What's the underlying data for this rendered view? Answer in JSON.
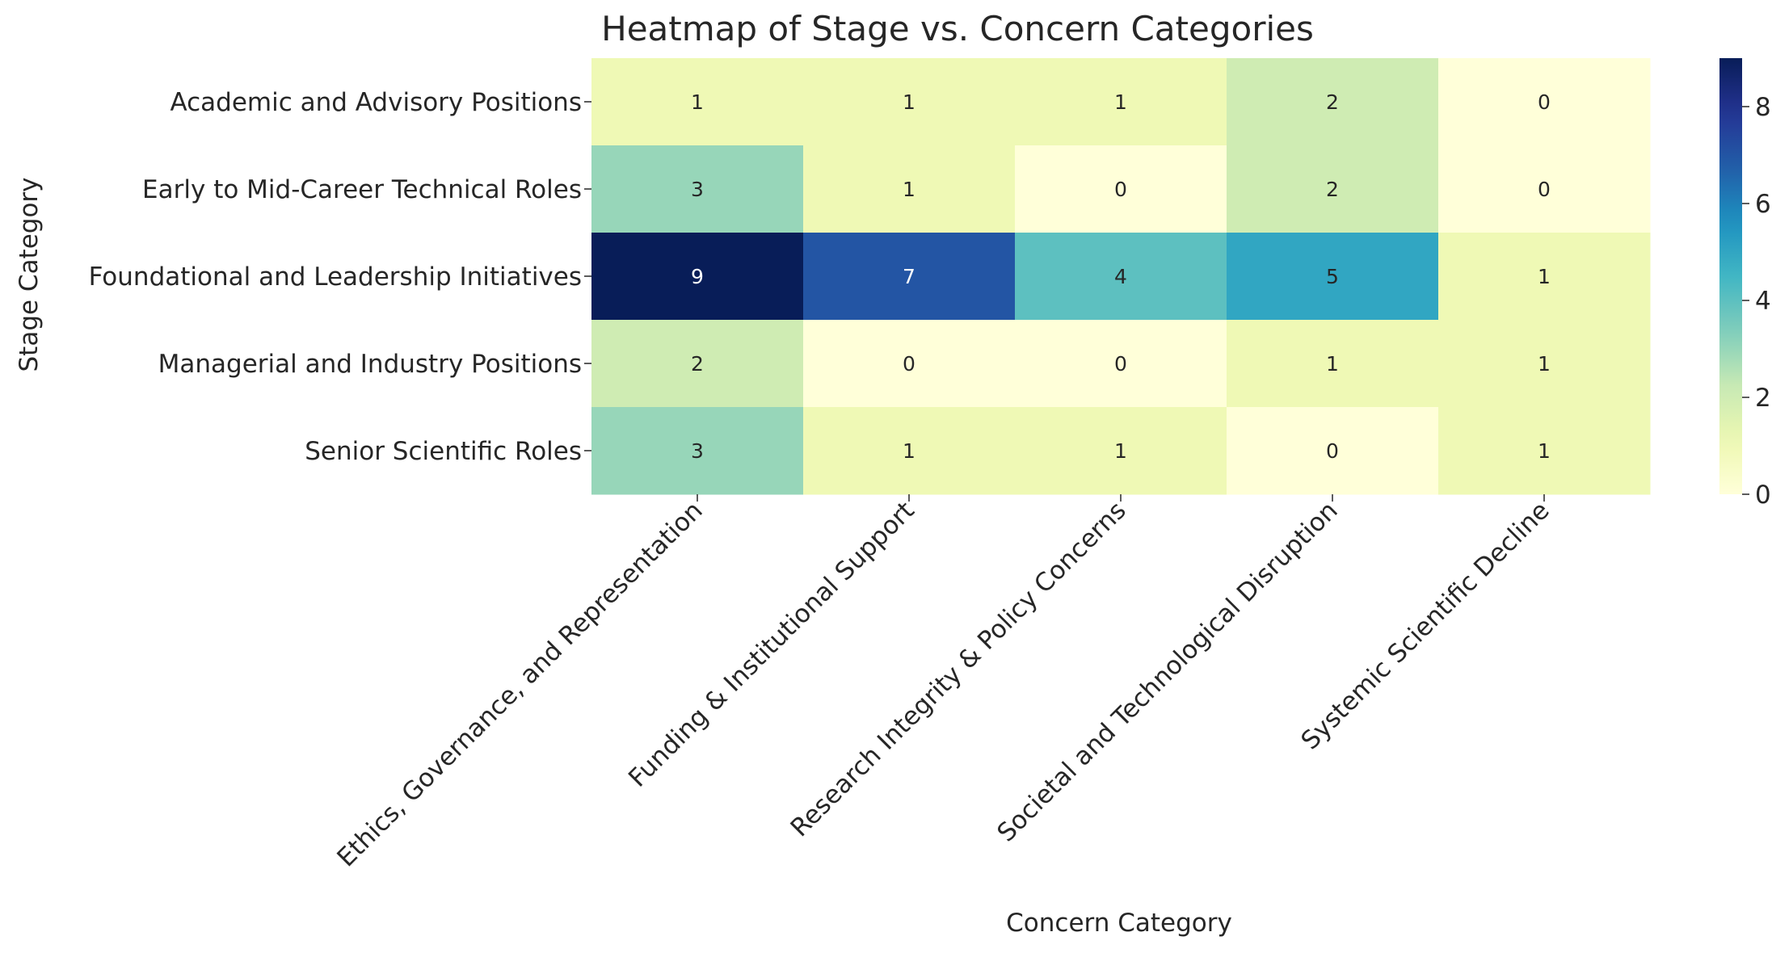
{
  "chart_data": {
    "type": "heatmap",
    "title": "Heatmap of Stage vs. Concern Categories",
    "xlabel": "Concern Category",
    "ylabel": "Stage Category",
    "x_categories": [
      "Ethics, Governance, and Representation",
      "Funding & Institutional Support",
      "Research Integrity & Policy Concerns",
      "Societal and Technological Disruption",
      "Systemic Scientific Decline"
    ],
    "y_categories": [
      "Academic and Advisory Positions",
      "Early to Mid-Career Technical Roles",
      "Foundational and Leadership Initiatives",
      "Managerial and Industry Positions",
      "Senior Scientific Roles"
    ],
    "values": [
      [
        1,
        1,
        1,
        2,
        0
      ],
      [
        3,
        1,
        0,
        2,
        0
      ],
      [
        9,
        7,
        4,
        5,
        1
      ],
      [
        2,
        0,
        0,
        1,
        1
      ],
      [
        3,
        1,
        1,
        0,
        1
      ]
    ],
    "colorbar": {
      "colormap": "YlGnBu",
      "range": [
        0,
        9
      ],
      "ticks": [
        0,
        2,
        4,
        6,
        8
      ]
    },
    "annotations": "cell values shown",
    "grid": false
  }
}
